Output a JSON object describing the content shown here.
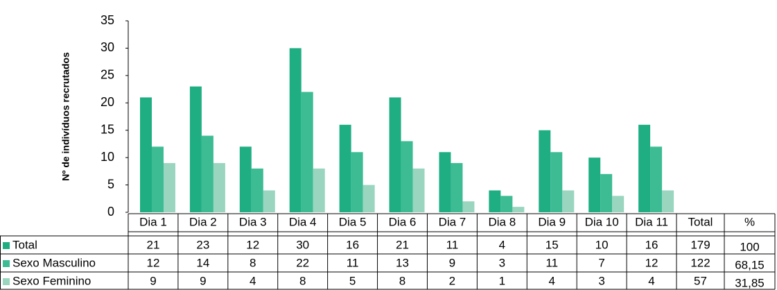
{
  "chart_data": {
    "type": "bar",
    "y_label": "Nº de indivíduos  recrutados",
    "categories": [
      "Dia 1",
      "Dia 2",
      "Dia 3",
      "Dia 4",
      "Dia 5",
      "Dia 6",
      "Dia 7",
      "Dia 8",
      "Dia 9",
      "Dia 10",
      "Dia 11"
    ],
    "series": [
      {
        "name": "Total",
        "color": "#1fae82",
        "values": [
          21,
          23,
          12,
          30,
          16,
          21,
          11,
          4,
          15,
          10,
          16
        ],
        "total": 179,
        "percent": 100
      },
      {
        "name": "Sexo Masculino",
        "color": "#3dbc94",
        "values": [
          12,
          14,
          8,
          22,
          11,
          13,
          9,
          3,
          11,
          7,
          12
        ],
        "total": 122,
        "percent": 68.15,
        "percent_label": "68,15"
      },
      {
        "name": "Sexo Feminino",
        "color": "#99d5bf",
        "values": [
          9,
          9,
          4,
          8,
          5,
          8,
          2,
          1,
          4,
          3,
          4
        ],
        "total": 57,
        "percent": 31.85,
        "percent_label": "31,85"
      }
    ],
    "table_columns": [
      "Total",
      "%"
    ],
    "ylim": [
      0,
      35
    ],
    "yticks": [
      0,
      5,
      10,
      15,
      20,
      25,
      30,
      35
    ]
  }
}
